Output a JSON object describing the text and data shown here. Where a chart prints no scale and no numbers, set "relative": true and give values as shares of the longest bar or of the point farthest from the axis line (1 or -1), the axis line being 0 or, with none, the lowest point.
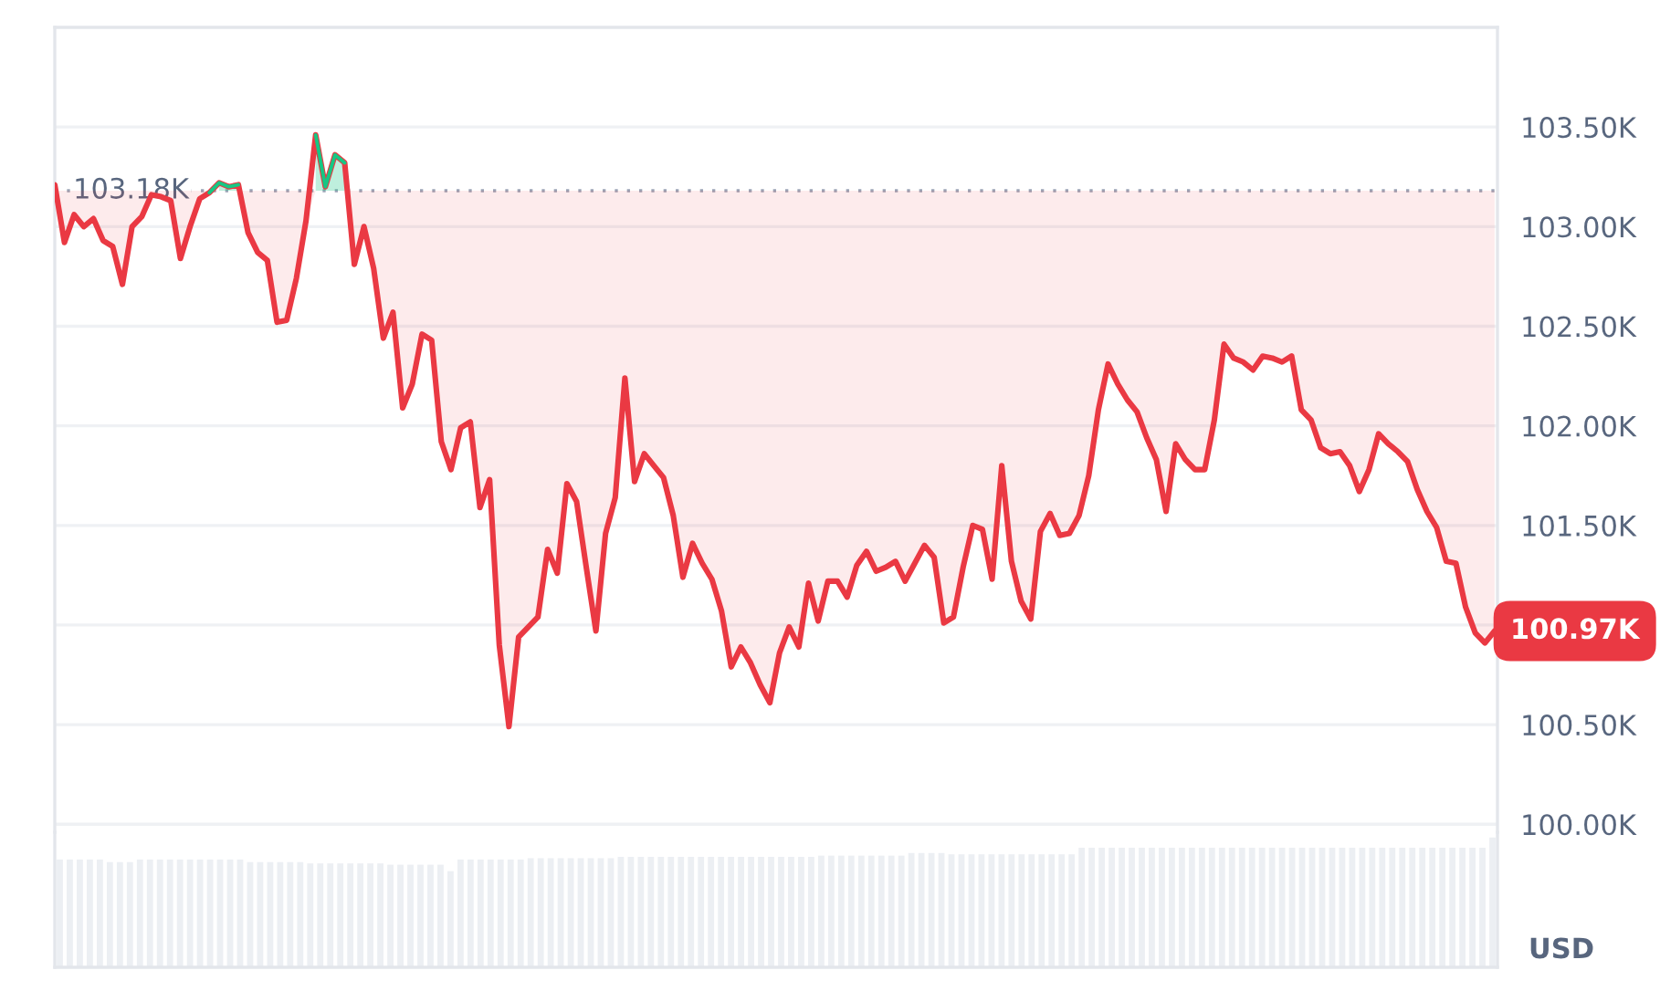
{
  "chart_data": [
    {
      "type": "line",
      "categories": [
        null,
        null,
        null,
        null,
        null,
        null,
        null,
        null,
        null,
        null,
        null,
        null,
        null,
        null,
        null,
        null,
        null,
        null,
        null,
        null,
        null,
        null,
        null,
        null,
        null,
        null,
        null,
        null,
        null,
        null,
        null,
        null,
        null,
        null,
        null,
        null,
        null,
        null,
        null,
        null,
        null,
        null,
        null,
        null,
        null,
        null,
        null,
        null,
        null,
        null,
        null,
        null,
        null,
        null,
        null,
        null,
        null,
        null,
        null,
        null,
        null,
        null,
        null,
        null,
        null,
        null,
        null,
        null,
        null,
        null,
        null,
        null,
        null,
        null,
        null,
        null,
        null,
        null,
        null,
        null,
        null,
        null,
        null,
        null,
        null,
        null,
        null,
        null,
        null,
        null,
        null,
        null,
        null,
        null,
        null,
        null,
        null,
        null,
        null,
        null,
        null,
        null,
        null,
        null,
        null,
        null,
        null,
        null,
        null,
        null,
        null,
        null,
        null,
        null,
        null,
        null,
        null,
        null,
        null,
        null,
        null,
        null,
        null,
        null,
        null,
        null,
        null,
        null,
        null,
        null,
        null,
        null,
        null,
        null,
        null,
        null,
        null,
        null,
        null,
        null,
        null,
        null,
        null,
        null,
        null,
        null,
        null,
        null,
        null,
        null
      ],
      "series": [
        {
          "color": "#ea3943",
          "values": [
            103.21,
            102.92,
            103.06,
            103.0,
            103.04,
            102.93,
            102.9,
            102.71,
            103.0,
            103.05,
            103.16,
            103.15,
            103.13,
            102.84,
            103.0,
            103.14,
            103.17,
            103.22,
            103.2,
            103.21,
            102.97,
            102.87,
            102.83,
            102.52,
            102.53,
            102.74,
            103.03,
            103.46,
            103.2,
            103.36,
            103.32,
            102.81,
            103.0,
            102.79,
            102.44,
            102.57,
            102.09,
            102.21,
            102.46,
            102.43,
            101.92,
            101.78,
            101.99,
            102.02,
            101.59,
            101.73,
            100.9,
            100.49,
            100.94,
            100.99,
            101.04,
            101.38,
            101.26,
            101.71,
            101.62,
            101.29,
            100.97,
            101.46,
            101.64,
            102.24,
            101.72,
            101.86,
            101.8,
            101.74,
            101.55,
            101.24,
            101.41,
            101.31,
            101.23,
            101.07,
            100.79,
            100.89,
            100.81,
            100.7,
            100.61,
            100.86,
            100.99,
            100.89,
            101.21,
            101.02,
            101.22,
            101.22,
            101.14,
            101.3,
            101.37,
            101.27,
            101.29,
            101.32,
            101.22,
            101.31,
            101.4,
            101.34,
            101.01,
            101.04,
            101.29,
            101.5,
            101.48,
            101.23,
            101.8,
            101.32,
            101.12,
            101.03,
            101.47,
            101.56,
            101.45,
            101.46,
            101.55,
            101.75,
            102.08,
            102.31,
            102.21,
            102.13,
            102.07,
            101.94,
            101.83,
            101.57,
            101.91,
            101.83,
            101.78,
            101.78,
            102.03,
            102.41,
            102.34,
            102.32,
            102.28,
            102.35,
            102.34,
            102.32,
            102.35,
            102.08,
            102.03,
            101.89,
            101.86,
            101.87,
            101.8,
            101.67,
            101.78,
            101.96,
            101.91,
            101.87,
            101.82,
            101.68,
            101.57,
            101.49,
            101.32,
            101.31,
            101.09,
            100.96,
            100.91,
            100.97
          ],
          "lower": [
            103.18,
            102.92,
            103.06,
            103.0,
            103.04,
            102.93,
            102.9,
            102.71,
            103.0,
            103.05,
            103.16,
            103.15,
            103.13,
            102.84,
            103.0,
            103.14,
            103.17,
            103.18,
            103.18,
            103.18,
            102.97,
            102.87,
            102.83,
            102.52,
            102.53,
            102.74,
            103.03,
            103.18,
            103.18,
            103.18,
            103.18,
            102.81,
            103.0,
            102.79,
            102.44,
            102.57,
            102.09,
            102.21,
            102.46,
            102.43,
            101.92,
            101.78,
            101.99,
            102.02,
            101.59,
            101.73,
            100.9,
            100.49,
            100.94,
            100.99,
            101.04,
            101.38,
            101.26,
            101.71,
            101.62,
            101.29,
            100.97,
            101.46,
            101.64,
            102.24,
            101.72,
            101.86,
            101.8,
            101.74,
            101.55,
            101.24,
            101.41,
            101.31,
            101.23,
            101.07,
            100.79,
            100.89,
            100.81,
            100.7,
            100.61,
            100.86,
            100.99,
            100.89,
            101.21,
            101.02,
            101.22,
            101.22,
            101.14,
            101.3,
            101.37,
            101.27,
            101.29,
            101.32,
            101.22,
            101.31,
            101.4,
            101.34,
            101.01,
            101.04,
            101.29,
            101.5,
            101.48,
            101.23,
            101.8,
            101.32,
            101.12,
            101.03,
            101.47,
            101.56,
            101.45,
            101.46,
            101.55,
            101.75,
            102.08,
            102.31,
            102.21,
            102.13,
            102.07,
            101.94,
            101.83,
            101.57,
            101.91,
            101.83,
            101.78,
            101.78,
            102.03,
            102.41,
            102.34,
            102.32,
            102.28,
            102.35,
            102.34,
            102.32,
            102.35,
            102.08,
            102.03,
            101.89,
            101.86,
            101.87,
            101.8,
            101.67,
            101.78,
            101.96,
            101.91,
            101.87,
            101.82,
            101.68,
            101.57,
            101.49,
            101.32,
            101.31,
            101.09,
            100.96,
            100.91,
            100.97
          ],
          "upper": [
            103.18,
            103.18,
            103.18,
            103.18,
            103.18,
            103.18,
            103.18,
            103.18,
            103.18,
            103.18,
            103.18,
            103.18,
            103.18,
            103.18,
            103.18,
            103.18,
            103.18,
            103.18,
            103.18,
            103.18,
            103.18,
            103.18,
            103.18,
            103.18,
            103.18,
            103.18,
            103.18,
            103.18,
            103.18,
            103.18,
            103.18,
            103.18,
            103.18,
            103.18,
            103.18,
            103.18,
            103.18,
            103.18,
            103.18,
            103.18,
            103.18,
            103.18,
            103.18,
            103.18,
            103.18,
            103.18,
            103.18,
            103.18,
            103.18,
            103.18,
            103.18,
            103.18,
            103.18,
            103.18,
            103.18,
            103.18,
            103.18,
            103.18,
            103.18,
            103.18,
            103.18,
            103.18,
            103.18,
            103.18,
            103.18,
            103.18,
            103.18,
            103.18,
            103.18,
            103.18,
            103.18,
            103.18,
            103.18,
            103.18,
            103.18,
            103.18,
            103.18,
            103.18,
            103.18,
            103.18,
            103.18,
            103.18,
            103.18,
            103.18,
            103.18,
            103.18,
            103.18,
            103.18,
            103.18,
            103.18,
            103.18,
            103.18,
            103.18,
            103.18,
            103.18,
            103.18,
            103.18,
            103.18,
            103.18,
            103.18,
            103.18,
            103.18,
            103.18,
            103.18,
            103.18,
            103.18,
            103.18,
            103.18,
            103.18,
            103.18,
            103.18,
            103.18,
            103.18,
            103.18,
            103.18,
            103.18,
            103.18,
            103.18,
            103.18,
            103.18,
            103.18,
            103.18,
            103.18,
            103.18,
            103.18,
            103.18,
            103.18,
            103.18,
            103.18,
            103.18,
            103.18,
            103.18,
            103.18,
            103.18,
            103.18,
            103.18,
            103.18,
            103.18,
            103.18,
            103.18,
            103.18,
            103.18,
            103.18,
            103.18,
            103.18,
            103.18,
            103.18,
            103.18,
            103.18,
            103.18
          ]
        },
        {
          "color": "#16c784",
          "values": [
            null,
            null,
            null,
            null,
            null,
            null,
            null,
            null,
            null,
            null,
            null,
            null,
            null,
            null,
            null,
            null,
            103.17,
            103.22,
            103.2,
            103.21,
            null,
            null,
            null,
            null,
            null,
            null,
            null,
            103.46,
            103.2,
            103.36,
            103.32,
            null,
            null,
            null,
            null,
            null,
            null,
            null,
            null,
            null,
            null,
            null,
            null,
            null,
            null,
            null,
            null,
            null,
            null,
            null,
            null,
            null,
            null,
            null,
            null,
            null,
            null,
            null,
            null,
            null,
            null,
            null,
            null,
            null,
            null,
            null,
            null,
            null,
            null,
            null,
            null,
            null,
            null,
            null,
            null,
            null,
            null,
            null,
            null,
            null,
            null,
            null,
            null,
            null,
            null,
            null,
            null,
            null,
            null,
            null,
            null,
            null,
            null,
            null,
            null,
            null,
            null,
            null,
            null,
            null,
            null,
            null,
            null,
            null,
            null,
            null,
            null,
            null,
            null,
            null,
            null,
            null,
            null,
            null,
            null,
            null,
            null,
            null,
            null,
            null,
            null,
            null,
            null,
            null,
            null,
            null,
            null,
            null,
            null,
            null,
            null,
            null,
            null,
            null,
            null,
            null,
            null,
            null,
            null,
            null,
            null,
            null,
            null,
            null,
            null,
            null,
            null,
            null,
            null,
            null
          ],
          "lower": [
            null,
            null,
            null,
            null,
            null,
            null,
            null,
            null,
            null,
            null,
            null,
            null,
            null,
            null,
            null,
            null,
            null,
            103.18,
            103.18,
            103.18,
            null,
            null,
            null,
            null,
            null,
            null,
            null,
            103.18,
            103.18,
            103.18,
            103.18,
            null,
            null,
            null,
            null,
            null,
            null,
            null,
            null,
            null,
            null,
            null,
            null,
            null,
            null,
            null,
            null,
            null,
            null,
            null,
            null,
            null,
            null,
            null,
            null,
            null,
            null,
            null,
            null,
            null,
            null,
            null,
            null,
            null,
            null,
            null,
            null,
            null,
            null,
            null,
            null,
            null,
            null,
            null,
            null,
            null,
            null,
            null,
            null,
            null,
            null,
            null,
            null,
            null,
            null,
            null,
            null,
            null,
            null,
            null,
            null,
            null,
            null,
            null,
            null,
            null,
            null,
            null,
            null,
            null,
            null,
            null,
            null,
            null,
            null,
            null,
            null,
            null,
            null,
            null,
            null,
            null,
            null,
            null,
            null,
            null,
            null,
            null,
            null,
            null,
            null,
            null,
            null,
            null,
            null,
            null,
            null,
            null,
            null,
            null,
            null,
            null,
            null,
            null,
            null,
            null,
            null,
            null,
            null,
            null,
            null,
            null,
            null,
            null,
            null,
            null,
            null,
            null,
            null,
            null
          ],
          "upper": [
            null,
            null,
            null,
            null,
            null,
            null,
            null,
            null,
            null,
            null,
            null,
            null,
            null,
            null,
            null,
            null,
            null,
            103.22,
            103.2,
            103.21,
            null,
            null,
            null,
            null,
            null,
            null,
            null,
            103.46,
            103.2,
            103.36,
            103.32,
            null,
            null,
            null,
            null,
            null,
            null,
            null,
            null,
            null,
            null,
            null,
            null,
            null,
            null,
            null,
            null,
            null,
            null,
            null,
            null,
            null,
            null,
            null,
            null,
            null,
            null,
            null,
            null,
            null,
            null,
            null,
            null,
            null,
            null,
            null,
            null,
            null,
            null,
            null,
            null,
            null,
            null,
            null,
            null,
            null,
            null,
            null,
            null,
            null,
            null,
            null,
            null,
            null,
            null,
            null,
            null,
            null,
            null,
            null,
            null,
            null,
            null,
            null,
            null,
            null,
            null,
            null,
            null,
            null,
            null,
            null,
            null,
            null,
            null,
            null,
            null,
            null,
            null,
            null,
            null,
            null,
            null,
            null,
            null,
            null,
            null,
            null,
            null,
            null,
            null,
            null,
            null,
            null,
            null,
            null,
            null,
            null,
            null,
            null,
            null,
            null,
            null,
            null,
            null,
            null,
            null,
            null,
            null,
            null,
            null,
            null,
            null,
            null,
            null,
            null,
            null,
            null,
            null,
            null
          ]
        }
      ],
      "ylim": [
        99.96,
        104.0
      ],
      "yticks": [
        {
          "value": 100,
          "label": "100.00K"
        },
        {
          "value": 100.5,
          "label": "100.50K"
        },
        {
          "value": 101,
          "label": null
        },
        {
          "value": 101.5,
          "label": "101.50K"
        },
        {
          "value": 102,
          "label": "102.00K"
        },
        {
          "value": 102.5,
          "label": "102.50K"
        },
        {
          "value": 103,
          "label": "103.00K"
        },
        {
          "value": 103.5,
          "label": "103.50K"
        }
      ],
      "ylabel": "USD",
      "ref_lines": [
        {
          "axis": "y",
          "value": 103.18,
          "label": "103.18K",
          "line_style": "dotted",
          "color": "#9aa3b5"
        }
      ],
      "annotations": [
        "100.97K"
      ],
      "grid": "y",
      "tick_labels": "y"
    },
    {
      "type": "bar",
      "relative": true,
      "categories": [
        null,
        null,
        null,
        null,
        null,
        null,
        null,
        null,
        null,
        null,
        null,
        null,
        null,
        null,
        null,
        null,
        null,
        null,
        null,
        null,
        null,
        null,
        null,
        null,
        null,
        null,
        null,
        null,
        null,
        null,
        null,
        null,
        null,
        null,
        null,
        null,
        null,
        null,
        null,
        null,
        null,
        null,
        null,
        null,
        null,
        null,
        null,
        null,
        null,
        null,
        null,
        null,
        null,
        null,
        null,
        null,
        null,
        null,
        null,
        null,
        null,
        null,
        null,
        null,
        null,
        null,
        null,
        null,
        null,
        null,
        null,
        null,
        null,
        null,
        null,
        null,
        null,
        null,
        null,
        null,
        null,
        null,
        null,
        null,
        null,
        null,
        null,
        null,
        null,
        null,
        null,
        null,
        null,
        null,
        null,
        null,
        null,
        null,
        null,
        null,
        null,
        null,
        null,
        null,
        null,
        null,
        null,
        null,
        null,
        null,
        null,
        null,
        null,
        null,
        null,
        null,
        null,
        null,
        null,
        null,
        null,
        null,
        null,
        null,
        null,
        null,
        null,
        null,
        null,
        null,
        null,
        null,
        null,
        null,
        null,
        null,
        null,
        null,
        null,
        null,
        null,
        null,
        null,
        null
      ],
      "values": [
        0.83,
        0.83,
        0.83,
        0.83,
        0.83,
        0.81,
        0.81,
        0.81,
        0.83,
        0.83,
        0.83,
        0.83,
        0.83,
        0.83,
        0.83,
        0.83,
        0.83,
        0.83,
        0.83,
        0.81,
        0.81,
        0.81,
        0.81,
        0.81,
        0.81,
        0.8,
        0.8,
        0.8,
        0.8,
        0.8,
        0.8,
        0.8,
        0.8,
        0.79,
        0.79,
        0.79,
        0.79,
        0.79,
        0.79,
        0.74,
        0.83,
        0.83,
        0.83,
        0.83,
        0.83,
        0.83,
        0.83,
        0.84,
        0.84,
        0.84,
        0.84,
        0.84,
        0.84,
        0.84,
        0.84,
        0.84,
        0.85,
        0.85,
        0.85,
        0.85,
        0.85,
        0.85,
        0.85,
        0.85,
        0.85,
        0.85,
        0.85,
        0.85,
        0.85,
        0.85,
        0.85,
        0.85,
        0.85,
        0.85,
        0.85,
        0.85,
        0.86,
        0.86,
        0.86,
        0.86,
        0.86,
        0.86,
        0.86,
        0.86,
        0.86,
        0.88,
        0.88,
        0.88,
        0.88,
        0.87,
        0.87,
        0.87,
        0.87,
        0.87,
        0.87,
        0.87,
        0.87,
        0.87,
        0.87,
        0.87,
        0.87,
        0.87,
        0.92,
        0.92,
        0.92,
        0.92,
        0.92,
        0.92,
        0.92,
        0.92,
        0.92,
        0.92,
        0.92,
        0.92,
        0.92,
        0.92,
        0.92,
        0.92,
        0.92,
        0.92,
        0.92,
        0.92,
        0.92,
        0.92,
        0.92,
        0.92,
        0.92,
        0.92,
        0.92,
        0.92,
        0.92,
        0.92,
        0.92,
        0.92,
        0.92,
        0.92,
        0.92,
        0.92,
        0.92,
        0.92,
        0.92,
        0.92,
        0.92,
        1.0
      ],
      "color": "#eceff3",
      "tick_labels": false
    }
  ]
}
